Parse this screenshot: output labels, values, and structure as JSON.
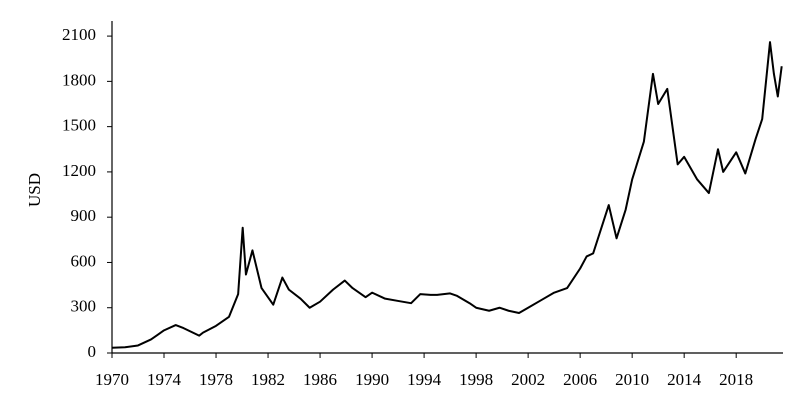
{
  "chart_data": {
    "type": "line",
    "y_label": "USD",
    "x": [
      1970,
      1971,
      1972,
      1973,
      1973.5,
      1974,
      1974.9,
      1975.5,
      1976.7,
      1977,
      1978,
      1979,
      1979.7,
      1980.05,
      1980.3,
      1980.8,
      1981.5,
      1982.4,
      1983.1,
      1983.6,
      1984.5,
      1985.2,
      1986,
      1987,
      1987.9,
      1988.5,
      1989.5,
      1990,
      1991,
      1992,
      1993,
      1993.7,
      1994.5,
      1995,
      1996,
      1996.5,
      1997.5,
      1998,
      1999,
      1999.8,
      2000.5,
      2001.3,
      2002,
      2003,
      2004,
      2005,
      2006,
      2006.5,
      2007,
      2008.2,
      2008.8,
      2009.5,
      2010,
      2010.9,
      2011.6,
      2012,
      2012.7,
      2013.5,
      2014,
      2015,
      2015.9,
      2016.6,
      2017,
      2018,
      2018.7,
      2019.5,
      2020,
      2020.6,
      2020.9,
      2021.2,
      2021.5
    ],
    "values": [
      35,
      38,
      50,
      90,
      120,
      150,
      185,
      165,
      115,
      135,
      180,
      240,
      390,
      830,
      520,
      680,
      430,
      320,
      500,
      420,
      360,
      300,
      340,
      420,
      480,
      430,
      370,
      400,
      360,
      345,
      330,
      390,
      385,
      385,
      395,
      380,
      330,
      300,
      280,
      300,
      280,
      265,
      300,
      350,
      400,
      430,
      560,
      640,
      660,
      980,
      760,
      950,
      1150,
      1400,
      1850,
      1650,
      1750,
      1250,
      1300,
      1150,
      1060,
      1350,
      1200,
      1330,
      1190,
      1420,
      1550,
      2060,
      1850,
      1700,
      1900
    ],
    "color": "#000000",
    "xlim": [
      1970,
      2021.6
    ],
    "xticks": [
      1970,
      1974,
      1978,
      1982,
      1986,
      1990,
      1994,
      1998,
      2002,
      2006,
      2010,
      2014,
      2018
    ],
    "ylim": [
      0,
      2200
    ],
    "yticks": [
      0,
      300,
      600,
      900,
      1200,
      1500,
      1800,
      2100
    ],
    "grid": false
  }
}
